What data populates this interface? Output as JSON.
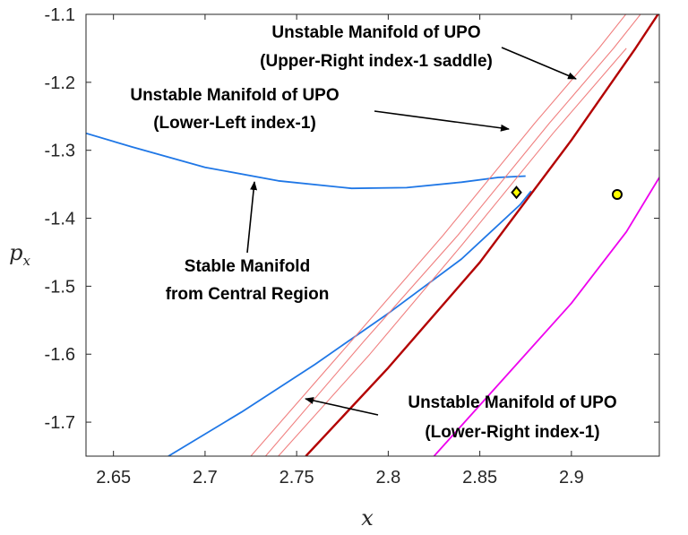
{
  "chart_data": {
    "type": "line",
    "title": "",
    "xlabel": "x",
    "ylabel": "p_x",
    "xlim": [
      2.635,
      2.948
    ],
    "ylim": [
      -1.75,
      -1.1
    ],
    "xticks": [
      2.65,
      2.7,
      2.75,
      2.8,
      2.85,
      2.9
    ],
    "yticks": [
      -1.1,
      -1.2,
      -1.3,
      -1.4,
      -1.5,
      -1.6,
      -1.7
    ],
    "xtick_labels": [
      "2.65",
      "2.7",
      "2.75",
      "2.8",
      "2.85",
      "2.9"
    ],
    "ytick_labels": [
      "-1.1",
      "-1.2",
      "-1.3",
      "-1.4",
      "-1.5",
      "-1.6",
      "-1.7"
    ],
    "grid": false,
    "series": [
      {
        "name": "Stable Manifold from Central Region (upper branch)",
        "color": "#1f77e6",
        "x": [
          2.635,
          2.66,
          2.7,
          2.74,
          2.78,
          2.81,
          2.84,
          2.86,
          2.875
        ],
        "y": [
          -1.275,
          -1.295,
          -1.325,
          -1.345,
          -1.356,
          -1.355,
          -1.347,
          -1.34,
          -1.338
        ]
      },
      {
        "name": "Stable Manifold from Central Region (lower branch)",
        "color": "#1f77e6",
        "x": [
          2.68,
          2.72,
          2.76,
          2.8,
          2.84,
          2.86,
          2.872,
          2.878
        ],
        "y": [
          -1.75,
          -1.685,
          -1.615,
          -1.54,
          -1.46,
          -1.41,
          -1.38,
          -1.36
        ]
      },
      {
        "name": "Unstable Manifold of UPO (Lower-Left index-1) a",
        "color": "#f08080",
        "x": [
          2.725,
          2.78,
          2.83,
          2.88,
          2.915,
          2.94
        ],
        "y": [
          -1.75,
          -1.58,
          -1.425,
          -1.26,
          -1.15,
          -1.065
        ]
      },
      {
        "name": "Unstable Manifold of UPO (Lower-Left index-1) b",
        "color": "#f08080",
        "x": [
          2.733,
          2.787,
          2.838,
          2.888,
          2.923,
          2.948
        ],
        "y": [
          -1.75,
          -1.58,
          -1.425,
          -1.26,
          -1.15,
          -1.065
        ]
      },
      {
        "name": "Unstable Manifold of UPO (Lower-Right index-1)",
        "color": "#f08080",
        "x": [
          2.74,
          2.79,
          2.84,
          2.89,
          2.93
        ],
        "y": [
          -1.75,
          -1.6,
          -1.44,
          -1.275,
          -1.15
        ]
      },
      {
        "name": "Unstable Manifold of UPO (Upper-Right index-1 saddle)",
        "color": "#b30000",
        "x": [
          2.755,
          2.8,
          2.85,
          2.9,
          2.935,
          2.948
        ],
        "y": [
          -1.75,
          -1.62,
          -1.465,
          -1.285,
          -1.15,
          -1.097
        ]
      },
      {
        "name": "Magenta curve",
        "color": "#ee00ee",
        "x": [
          2.825,
          2.86,
          2.9,
          2.93,
          2.948
        ],
        "y": [
          -1.75,
          -1.645,
          -1.525,
          -1.42,
          -1.34
        ]
      }
    ],
    "points": [
      {
        "name": "equilibrium diamond",
        "x": 2.87,
        "y": -1.362,
        "marker": "diamond",
        "fill": "#ffff00"
      },
      {
        "name": "equilibrium circle",
        "x": 2.925,
        "y": -1.365,
        "marker": "circle",
        "fill": "#ffff00"
      }
    ],
    "annotations": [
      {
        "id": "ann1",
        "lines": [
          "Unstable Manifold of UPO",
          "(Upper-Right index-1 saddle)"
        ],
        "arrow_to": [
          2.904,
          -1.2
        ]
      },
      {
        "id": "ann2",
        "lines": [
          "Unstable Manifold of UPO",
          "(Lower-Left index-1)"
        ],
        "arrow_to": [
          2.87,
          -1.27
        ]
      },
      {
        "id": "ann3",
        "lines": [
          "Stable Manifold",
          "from Central Region"
        ],
        "arrow_to": [
          2.754,
          -1.345
        ]
      },
      {
        "id": "ann4",
        "lines": [
          "Unstable Manifold of UPO",
          "(Lower-Right index-1)"
        ],
        "arrow_to": [
          2.757,
          -1.665
        ]
      }
    ]
  }
}
